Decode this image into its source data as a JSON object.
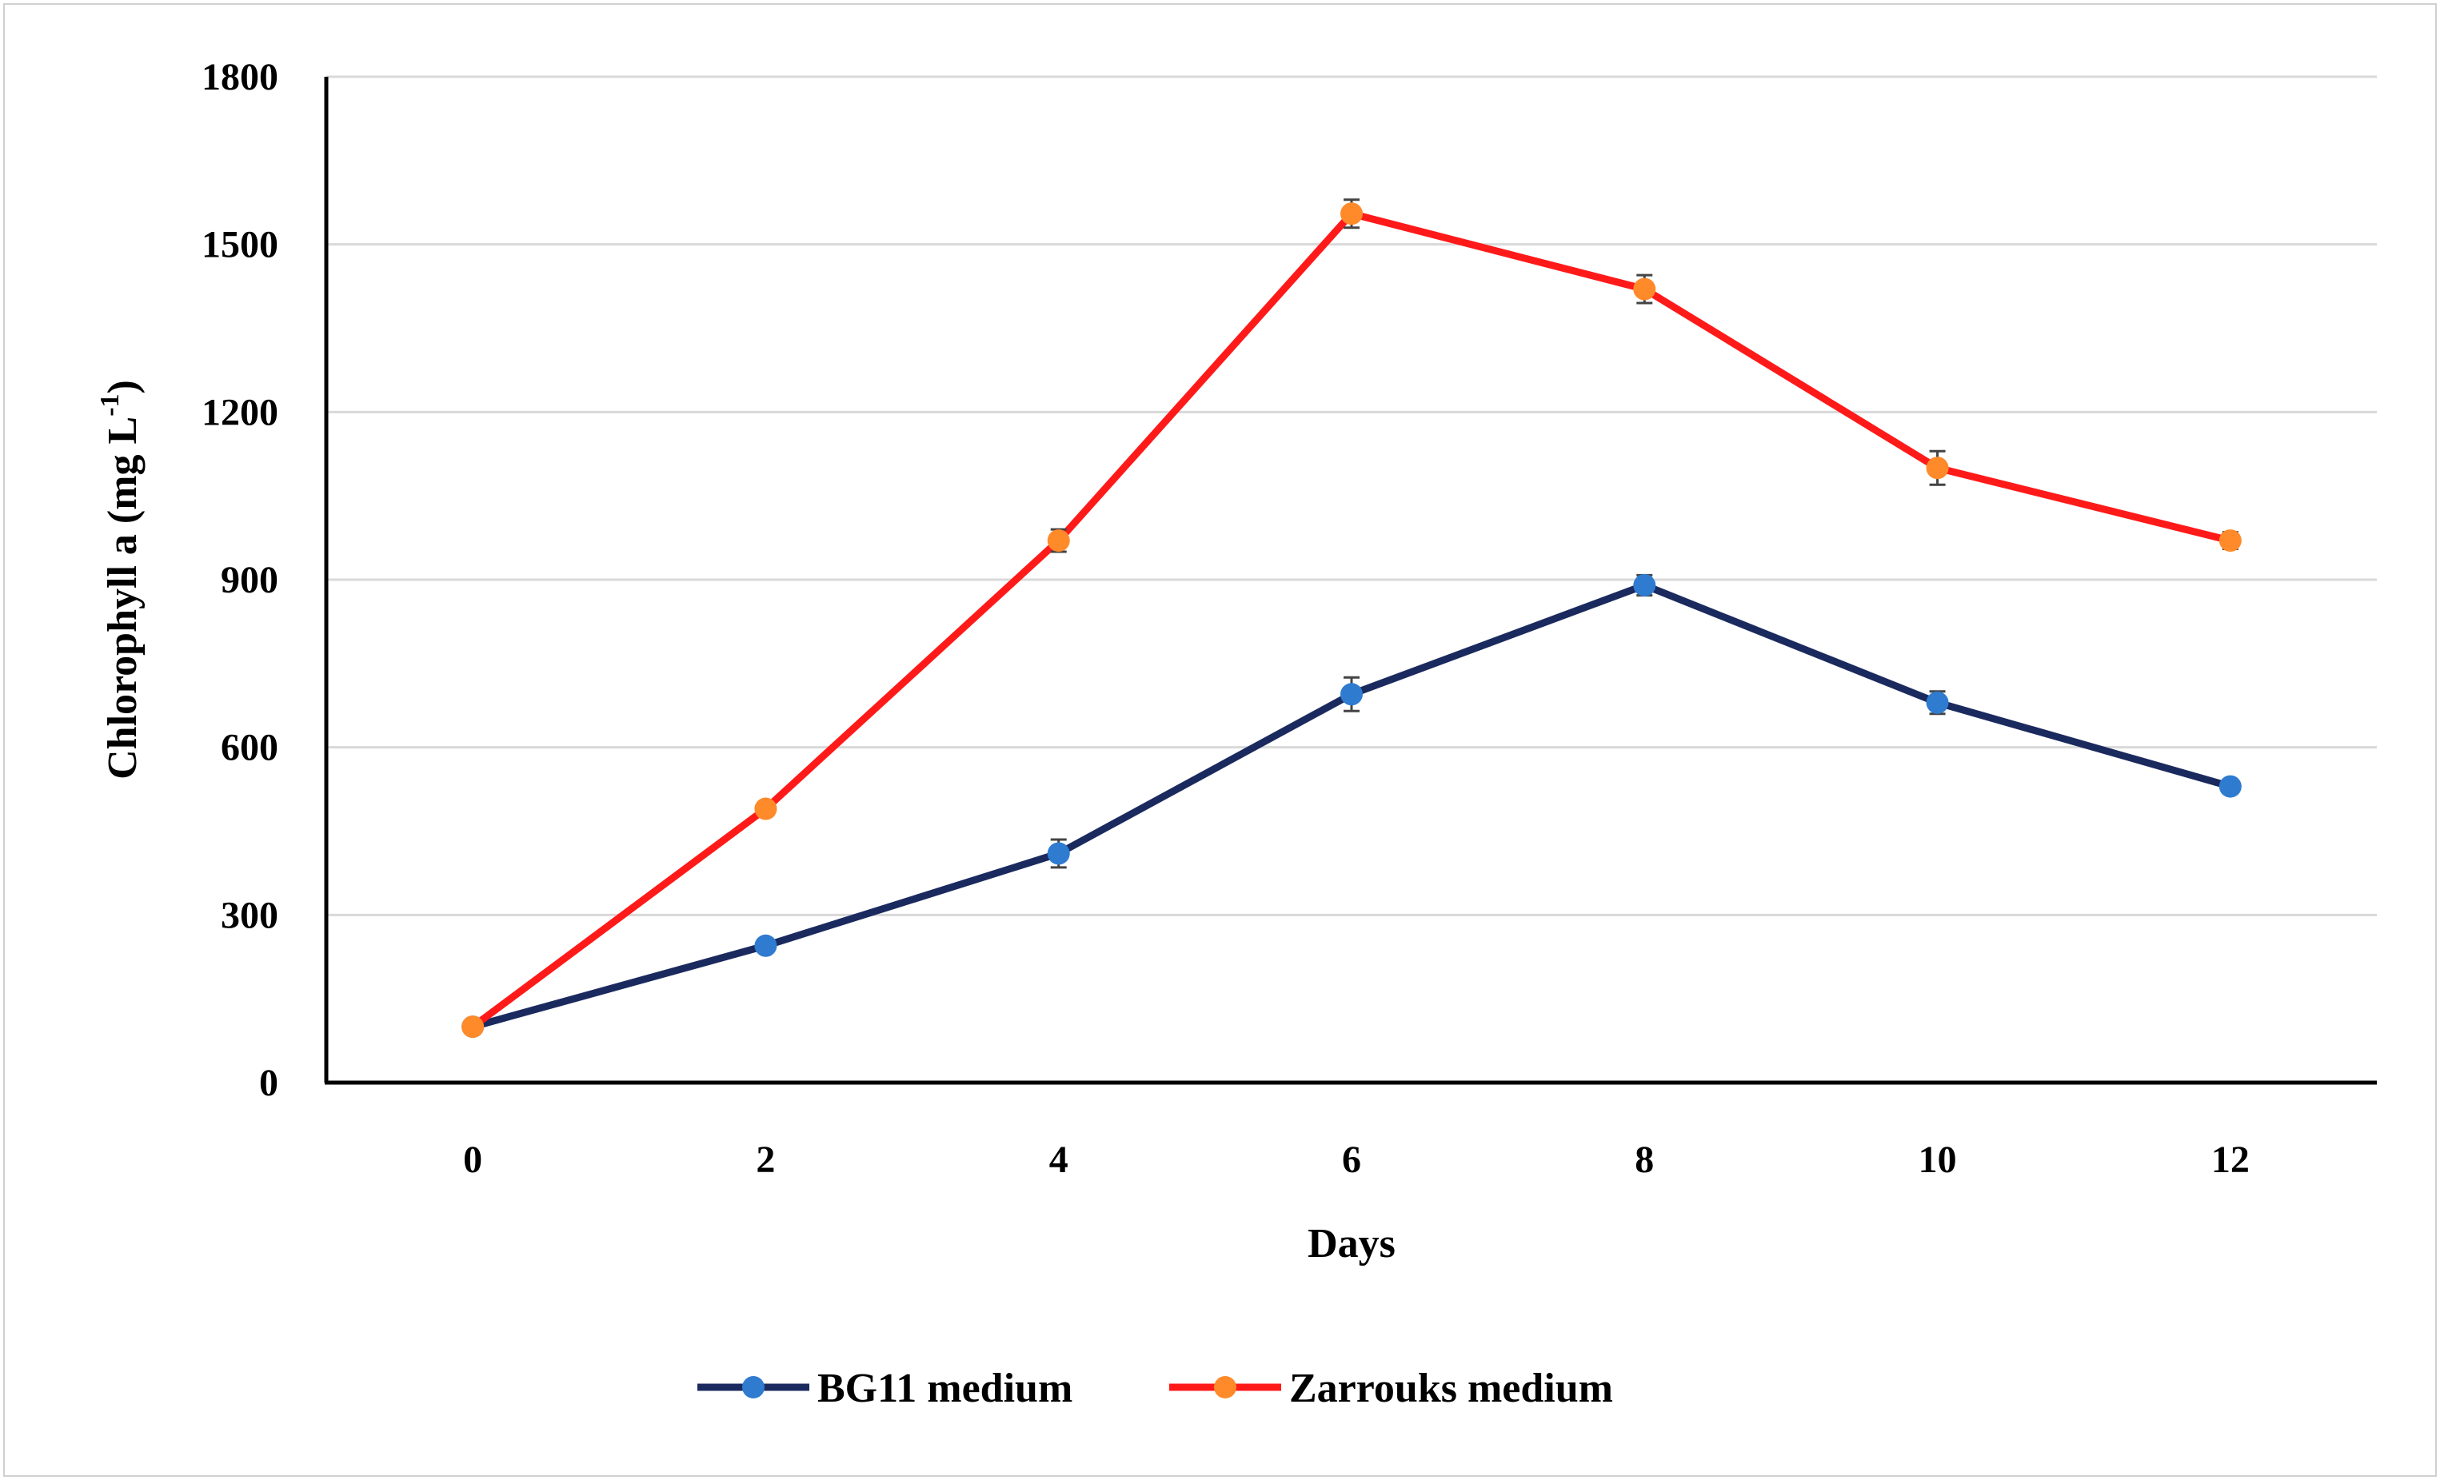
{
  "chart_data": {
    "type": "line",
    "title": "",
    "xlabel": "Days",
    "ylabel": "Chlorophyll a (mg L",
    "ylabel_sup": "-1",
    "ylabel_end": ")",
    "ylim": [
      0,
      1800
    ],
    "yticks": [
      0,
      300,
      600,
      900,
      1200,
      1500,
      1800
    ],
    "x": [
      0,
      2,
      4,
      6,
      8,
      10,
      12
    ],
    "grid": true,
    "legend_position": "bottom",
    "series": [
      {
        "name": "BG11 medium",
        "line_color": "#1a2a5e",
        "marker_color": "#2e7bd0",
        "values": [
          100,
          245,
          410,
          695,
          890,
          680,
          530
        ],
        "errors": [
          10,
          12,
          25,
          30,
          18,
          20,
          12
        ]
      },
      {
        "name": "Zarrouks medium",
        "line_color": "#ff1a1a",
        "marker_color": "#ff8a2a",
        "values": [
          100,
          490,
          970,
          1555,
          1420,
          1100,
          970
        ],
        "errors": [
          10,
          12,
          20,
          25,
          25,
          30,
          15
        ]
      }
    ]
  }
}
